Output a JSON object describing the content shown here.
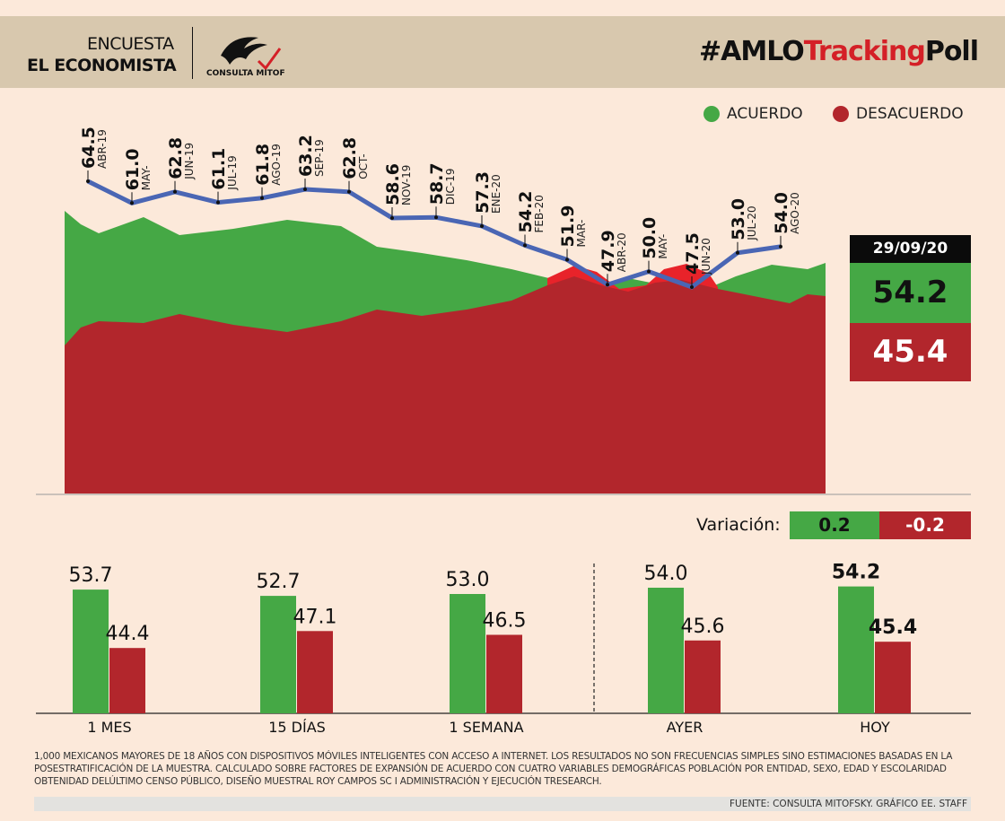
{
  "header": {
    "line1": "ENCUESTA",
    "line2": "EL ECONOMISTA",
    "logo_text": "CONSULTA MITOFSKY",
    "hashtag_a": "#AMLO",
    "hashtag_b": "Tracking",
    "hashtag_c": "Poll"
  },
  "colors": {
    "acuerdo": "#45a845",
    "desacuerdo": "#b2262c",
    "line": "#4a66b4",
    "overlap_red": "#e8232a"
  },
  "legend": {
    "acuerdo": "ACUERDO",
    "desacuerdo": "DESACUERDO"
  },
  "current": {
    "date": "29/09/20",
    "acuerdo": "54.2",
    "desacuerdo": "45.4"
  },
  "variacion": {
    "label": "Variación:",
    "acuerdo": "0.2",
    "desacuerdo": "-0.2"
  },
  "chart_data": [
    {
      "type": "line",
      "series": [
        {
          "name": "ACUERDO",
          "labels": [
            "ABR-19",
            "MAY-",
            "JUN-19",
            "JUL-19",
            "AGO-19",
            "SEP-19",
            "OCT-",
            "NOV-19",
            "DIC-19",
            "ENE-20",
            "FEB-20",
            "MAR-",
            "ABR-20",
            "MAY-",
            "JUN-20",
            "JUL-20",
            "AGO-20"
          ],
          "values": [
            64.5,
            61.0,
            62.8,
            61.1,
            61.8,
            63.2,
            62.8,
            58.6,
            58.7,
            57.3,
            54.2,
            51.9,
            47.9,
            50.0,
            47.5,
            53.0,
            54.0
          ]
        }
      ],
      "background": "area (acuerdo green over desacuerdo red, daily)"
    },
    {
      "type": "bar",
      "categories": [
        "1 MES",
        "15 DÍAS",
        "1 SEMANA",
        "AYER",
        "HOY"
      ],
      "series": [
        {
          "name": "ACUERDO",
          "values": [
            53.7,
            52.7,
            53.0,
            54.0,
            54.2
          ]
        },
        {
          "name": "DESACUERDO",
          "values": [
            44.4,
            47.1,
            46.5,
            45.6,
            45.4
          ]
        }
      ]
    }
  ],
  "footer": {
    "note": "1,000 MEXICANOS MAYORES DE 18 AÑOS CON DISPOSITIVOS MÓVILES INTELIGENTES CON ACCESO A INTERNET. LOS RESULTADOS NO SON FRECUENCIAS SIMPLES SINO ESTIMACIONES BASADAS EN LA POSESTRATIFICACIÓN DE LA MUESTRA. CALCULADO SOBRE FACTORES DE EXPANSIÓN DE ACUERDO CON CUATRO VARIABLES DEMOGRÁFICAS POBLACIÓN POR ENTIDAD, SEXO, EDAD Y ESCOLARIDAD OBTENIDAD DELÚLTIMO CENSO PÚBLICO, DISEÑO MUESTRAL ROY CAMPOS SC I ADMINISTRACIÓN Y EJECUCIÓN TRESEARCH.",
    "source": "FUENTE: CONSULTA MITOFSKY. GRÁFICO EE. STAFF"
  }
}
